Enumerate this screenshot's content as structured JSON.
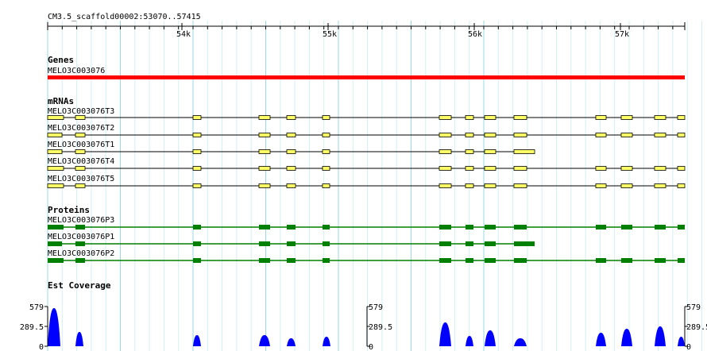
{
  "ruler": {
    "region": "CM3.5_scaffold00002:53070..57415",
    "ticks": [
      "54k",
      "55k",
      "56k",
      "57k"
    ]
  },
  "tracks": {
    "genes": {
      "title": "Genes",
      "features": [
        {
          "label": "MELO3C003076",
          "color": "#ff0000"
        }
      ]
    },
    "mrnas": {
      "title": "mRNAs",
      "color": "#ffff66",
      "rows": [
        {
          "label": "MELO3C003076T3"
        },
        {
          "label": "MELO3C003076T2"
        },
        {
          "label": "MELO3C003076T1"
        },
        {
          "label": "MELO3C003076T4"
        },
        {
          "label": "MELO3C003076T5"
        }
      ]
    },
    "proteins": {
      "title": "Proteins",
      "color": "#008000",
      "rows": [
        {
          "label": "MELO3C003076P3"
        },
        {
          "label": "MELO3C003076P1"
        },
        {
          "label": "MELO3C003076P2"
        }
      ]
    },
    "coverage": {
      "title": "Est Coverage",
      "color": "#0000ff",
      "axis_labels": [
        "579",
        "289.5",
        "0"
      ]
    }
  }
}
